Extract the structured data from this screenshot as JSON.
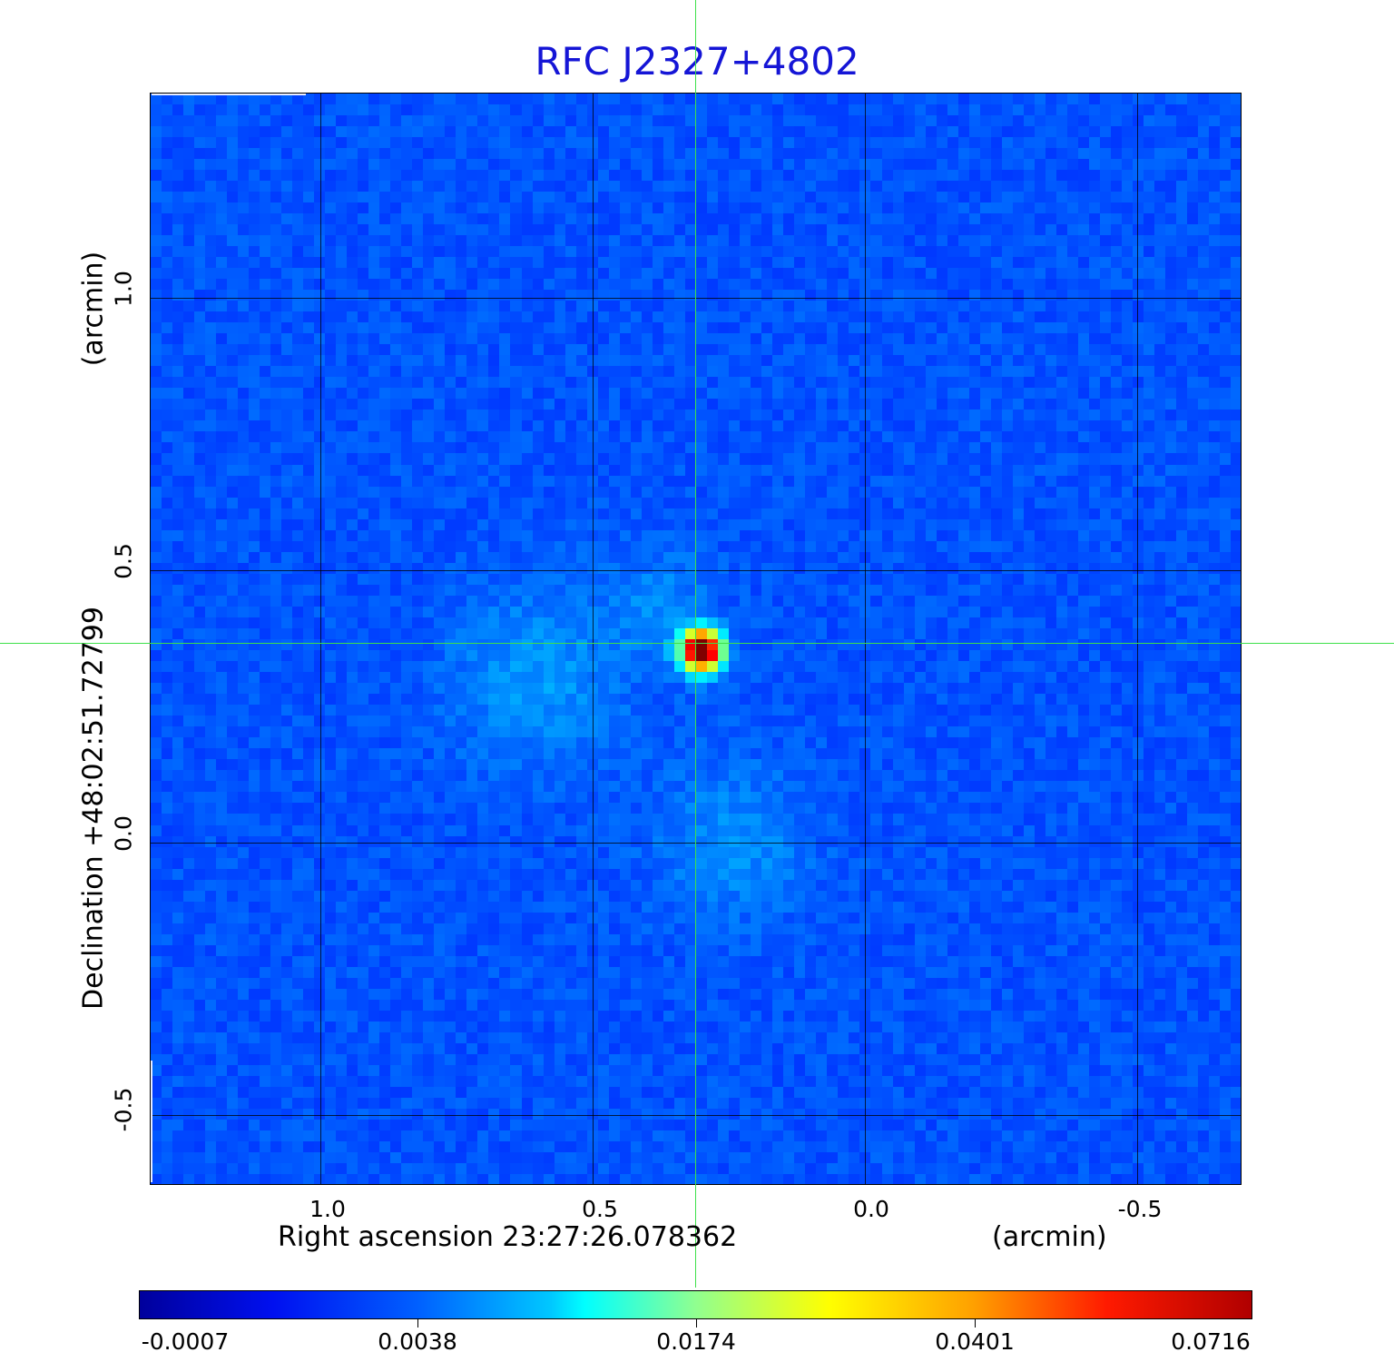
{
  "title": "RFC J2327+4802",
  "x_axis": {
    "label": "Right ascension  23:27:26.078362",
    "unit": "(arcmin)",
    "ticks": [
      "1.0",
      "0.5",
      "0.0",
      "-0.5"
    ]
  },
  "y_axis": {
    "label": "Declination  +48:02:51.72799",
    "unit": "(arcmin)",
    "ticks": [
      "1.0",
      "0.5",
      "0.0",
      "-0.5"
    ]
  },
  "colorbar": {
    "labels": [
      "-0.0007",
      "0.0038",
      "0.0174",
      "0.0401",
      "0.0716"
    ],
    "colormap": "jet"
  },
  "colors": {
    "title": "#1515d6",
    "crosshair": "#3ee04a",
    "background_field": "#1a3cf0"
  }
}
